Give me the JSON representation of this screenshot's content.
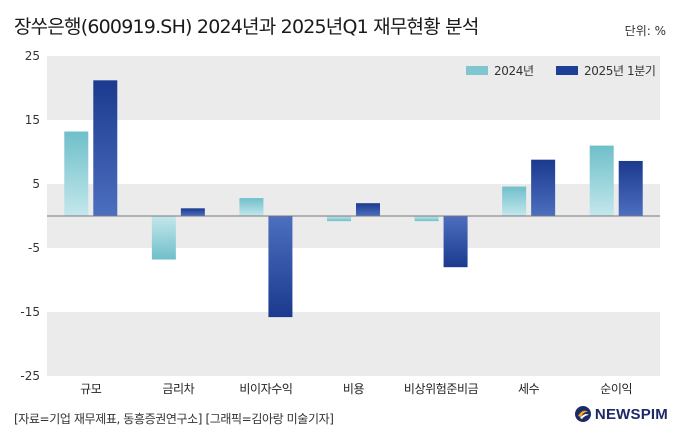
{
  "title": "장쑤은행(600919.SH) 2024년과 2025년Q1 재무현황 분석",
  "unit_label": "단위: %",
  "source": "[자료=기업 재무제표, 동흥증권연구소] [그래픽=김아랑 미술기자]",
  "logo_text": "NEWSPIM",
  "colors": {
    "series_2024": "#7fc6cf",
    "series_2025": "#1d3f95",
    "band": "#ebebeb"
  },
  "chart_data": {
    "type": "bar",
    "title": "장쑤은행(600919.SH) 2024년과 2025년Q1 재무현황 분석",
    "xlabel": "",
    "ylabel": "단위: %",
    "ylim": [
      -25,
      25
    ],
    "yticks": [
      25,
      15,
      5,
      -5,
      -15,
      -25
    ],
    "ytick_labels": [
      "25",
      "15",
      "5",
      "-5",
      "-15",
      "-25"
    ],
    "legend_position": "top-right",
    "categories": [
      "규모",
      "금리차",
      "비이자수익",
      "비용",
      "비상위험준비금",
      "세수",
      "순이익"
    ],
    "series": [
      {
        "name": "2024년",
        "values": [
          13.2,
          -6.8,
          2.8,
          -0.8,
          -0.8,
          4.6,
          11.0
        ]
      },
      {
        "name": "2025년 1분기",
        "values": [
          21.2,
          1.2,
          -15.8,
          2.0,
          -8.0,
          8.8,
          8.6
        ]
      }
    ]
  }
}
